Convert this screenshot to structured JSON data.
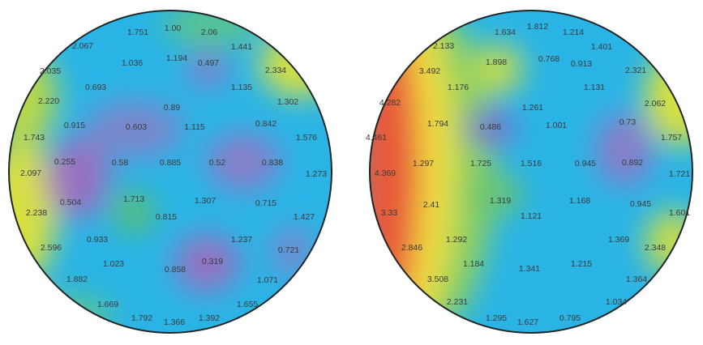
{
  "maps": [
    {
      "labels": [
        "1.751",
        "1.00",
        "2.06",
        "2.067",
        "1.441",
        "1.036",
        "1.194",
        "0.497",
        "2.334",
        "2.035",
        "0.693",
        "1.135",
        "2.220",
        "0.89",
        "1.302",
        "0.915",
        "0.603",
        "1.115",
        "0.842",
        "1.576",
        "1.743",
        "0.255",
        "0.58",
        "0.885",
        "0.52",
        "0.838",
        "2.097",
        "1.273",
        "0.504",
        "1.713",
        "1.307",
        "0.715",
        "2.238",
        "0.815",
        "1.427",
        "0.933",
        "1.237",
        "0.721",
        "2.596",
        "1.023",
        "0.319",
        "0.858",
        "1.882",
        "1.071",
        "1.669",
        "1.655",
        "1.792",
        "1.366",
        "1.392"
      ]
    },
    {
      "labels": [
        "1.634",
        "1.812",
        "1.214",
        "2.133",
        "1.401",
        "1.898",
        "0.768",
        "0.913",
        "2.321",
        "3.492",
        "1.176",
        "1.131",
        "4.282",
        "2.062",
        "1.261",
        "1.794",
        "0.486",
        "1.001",
        "0.73",
        "1.757",
        "4.461",
        "1.297",
        "1.725",
        "1.516",
        "0.945",
        "0.892",
        "4.369",
        "1.721",
        "1.319",
        "1.168",
        "0.945",
        "2.41",
        "1.121",
        "1.601",
        "3.33",
        "1.292",
        "1.369",
        "2.846",
        "2.348",
        "1.184",
        "1.341",
        "1.215",
        "3.508",
        "1.364",
        "1.034",
        "2.231",
        "1.295",
        "1.627",
        "0.795"
      ]
    }
  ]
}
